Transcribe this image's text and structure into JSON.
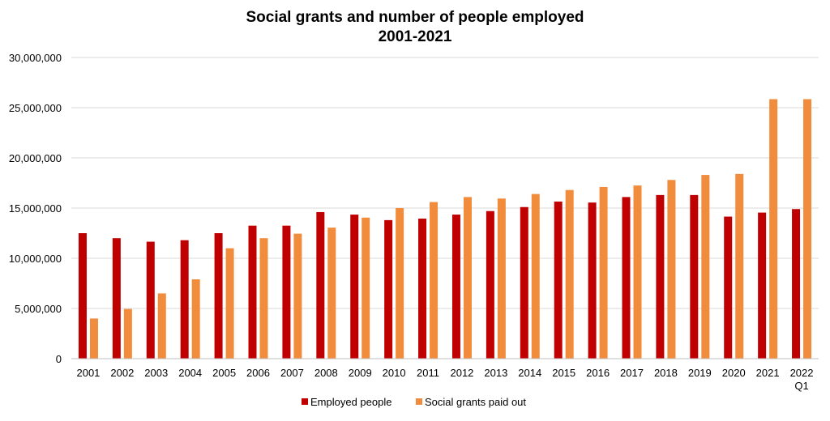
{
  "chart_data": {
    "type": "bar",
    "title_lines": [
      "Social grants and number of people employed",
      "2001-2021"
    ],
    "categories": [
      "2001",
      "2002",
      "2003",
      "2004",
      "2005",
      "2006",
      "2007",
      "2008",
      "2009",
      "2010",
      "2011",
      "2012",
      "2013",
      "2014",
      "2015",
      "2016",
      "2017",
      "2018",
      "2019",
      "2020",
      "2021",
      "2022 Q1"
    ],
    "category_lines": [
      [
        "2001"
      ],
      [
        "2002"
      ],
      [
        "2003"
      ],
      [
        "2004"
      ],
      [
        "2005"
      ],
      [
        "2006"
      ],
      [
        "2007"
      ],
      [
        "2008"
      ],
      [
        "2009"
      ],
      [
        "2010"
      ],
      [
        "2011"
      ],
      [
        "2012"
      ],
      [
        "2013"
      ],
      [
        "2014"
      ],
      [
        "2015"
      ],
      [
        "2016"
      ],
      [
        "2017"
      ],
      [
        "2018"
      ],
      [
        "2019"
      ],
      [
        "2020"
      ],
      [
        "2021"
      ],
      [
        "2022",
        "Q1"
      ]
    ],
    "series": [
      {
        "name": "Employed people",
        "color": "#c00000",
        "values": [
          12500000,
          12000000,
          11650000,
          11800000,
          12500000,
          13250000,
          13250000,
          14600000,
          14350000,
          13800000,
          13950000,
          14350000,
          14700000,
          15100000,
          15650000,
          15550000,
          16100000,
          16300000,
          16300000,
          14150000,
          14550000,
          14900000
        ]
      },
      {
        "name": "Social grants paid out",
        "color": "#f08c3c",
        "values": [
          4000000,
          4950000,
          6500000,
          7900000,
          11000000,
          12000000,
          12450000,
          13050000,
          14050000,
          15000000,
          15600000,
          16100000,
          15950000,
          16400000,
          16800000,
          17100000,
          17250000,
          17800000,
          18300000,
          18400000,
          25850000,
          25850000
        ]
      }
    ],
    "ylim": [
      0,
      30000000
    ],
    "yticks": [
      "0",
      "5,000,000",
      "10,000,000",
      "15,000,000",
      "20,000,000",
      "25,000,000",
      "30,000,000"
    ],
    "ytick_values": [
      0,
      5000000,
      10000000,
      15000000,
      20000000,
      25000000,
      30000000
    ],
    "grid": true,
    "legend_position": "bottom"
  }
}
